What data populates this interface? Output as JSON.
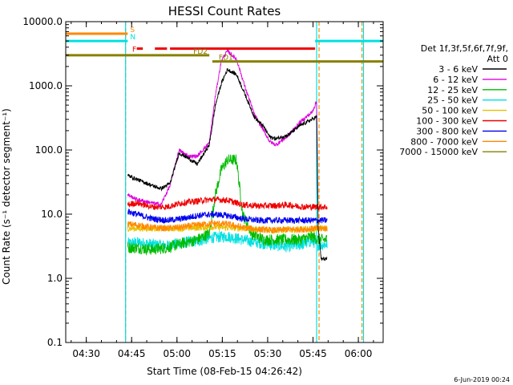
{
  "chart_data": {
    "type": "line",
    "title": "HESSI Count Rates",
    "xlabel": "Start Time (08-Feb-15 04:26:42)",
    "ylabel": "Count Rate (s⁻¹ detector segment⁻¹)",
    "x_ticks": [
      "04:30",
      "04:45",
      "05:00",
      "05:15",
      "05:30",
      "05:45",
      "06:00"
    ],
    "x_tick_minutes": [
      3.3,
      18.3,
      33.3,
      48.3,
      63.3,
      78.3,
      93.3
    ],
    "xlim_minutes": [
      -3.5,
      101.5
    ],
    "y_scale": "log",
    "ylim": [
      0.1,
      10000
    ],
    "y_ticks": [
      "0.1",
      "1.0",
      "10.0",
      "100.0",
      "1000.0",
      "10000.0"
    ],
    "y_tick_values": [
      0.1,
      1,
      10,
      100,
      1000,
      10000
    ],
    "legend_title": "Det 1f,3f,5f,6f,7f,9f,",
    "legend_subtitle": "Att 0",
    "legend_placement": "right",
    "series": [
      {
        "name": "3 - 6 keV",
        "color": "#000000",
        "t": [
          17,
          20,
          25,
          28,
          31,
          34,
          37,
          40,
          44,
          46,
          48,
          50,
          53,
          56,
          59,
          62,
          64,
          66,
          70,
          74,
          78,
          79.5,
          80,
          81,
          83
        ],
        "v": [
          40,
          35,
          28,
          25,
          30,
          90,
          75,
          60,
          120,
          500,
          1100,
          1800,
          1500,
          700,
          320,
          230,
          160,
          150,
          170,
          240,
          300,
          330,
          6,
          2,
          2
        ]
      },
      {
        "name": "6 - 12 keV",
        "color": "#dd00dd",
        "t": [
          17,
          20,
          25,
          28,
          31,
          34,
          37,
          40,
          44,
          46,
          48,
          50,
          53,
          56,
          59,
          62,
          64,
          66,
          70,
          74,
          78,
          79.5,
          80
        ],
        "v": [
          20,
          17,
          15,
          14,
          28,
          100,
          80,
          80,
          130,
          700,
          2500,
          3500,
          2600,
          900,
          350,
          200,
          135,
          120,
          165,
          270,
          390,
          570,
          8
        ]
      },
      {
        "name": "12 - 25 keV",
        "color": "#00bb00",
        "t": [
          17,
          20,
          25,
          30,
          35,
          40,
          44,
          46,
          48,
          50,
          53,
          55,
          58,
          62,
          66,
          70,
          74,
          78,
          80,
          83
        ],
        "v": [
          3,
          3,
          2.8,
          3,
          3.5,
          4,
          5,
          20,
          50,
          70,
          70,
          10,
          5,
          4,
          4,
          4,
          4,
          4.5,
          4,
          4
        ]
      },
      {
        "name": "25 - 50 keV",
        "color": "#00e0e0",
        "t": [
          17,
          20,
          25,
          30,
          35,
          40,
          45,
          50,
          55,
          60,
          65,
          70,
          75,
          78,
          80,
          83
        ],
        "v": [
          3.5,
          3.6,
          3.4,
          3.2,
          3.6,
          3.8,
          4.3,
          4.5,
          4,
          3.6,
          3.3,
          3.1,
          3.4,
          3.8,
          3.3,
          3.4
        ]
      },
      {
        "name": "50 - 100 keV",
        "color": "#e8c000",
        "t": [
          17,
          25,
          35,
          45,
          55,
          65,
          75,
          83
        ],
        "v": [
          6,
          6,
          6,
          6.3,
          6,
          5.6,
          5.8,
          6
        ]
      },
      {
        "name": "100 - 300 keV",
        "color": "#ee0000",
        "t": [
          17,
          20,
          25,
          30,
          35,
          40,
          45,
          50,
          55,
          60,
          65,
          70,
          75,
          80,
          83
        ],
        "v": [
          14,
          15,
          13,
          13,
          15,
          16,
          17,
          16.5,
          14,
          13.5,
          13.5,
          14,
          13,
          13,
          13
        ]
      },
      {
        "name": "300 - 800 keV",
        "color": "#0000ee",
        "t": [
          17,
          20,
          25,
          30,
          35,
          40,
          45,
          50,
          55,
          60,
          65,
          70,
          75,
          80,
          83
        ],
        "v": [
          11,
          10,
          8.5,
          8,
          8.5,
          9.5,
          10,
          9.5,
          8.5,
          8,
          8,
          8,
          8,
          8,
          8
        ]
      },
      {
        "name": "800 - 7000 keV",
        "color": "#ff8800",
        "t": [
          17,
          20,
          25,
          30,
          35,
          40,
          45,
          50,
          55,
          60,
          65,
          70,
          75,
          80,
          83
        ],
        "v": [
          7,
          6.8,
          6.2,
          6,
          6.3,
          6.8,
          7.2,
          7,
          6.2,
          5.8,
          5.6,
          5.8,
          5.8,
          6,
          6
        ]
      },
      {
        "name": "7000 - 15000 keV",
        "color": "#888000",
        "t": [],
        "v": []
      }
    ],
    "flags": [
      {
        "label": "S",
        "color": "#ff8800",
        "y_value": 6500,
        "segments": [
          [
            -3.5,
            17
          ]
        ]
      },
      {
        "label": "N",
        "color": "#00e0e0",
        "y_value": 5000,
        "segments": [
          [
            -3.5,
            17
          ],
          [
            79,
            101.5
          ]
        ]
      },
      {
        "label": "F",
        "color": "#ee0000",
        "y_value": 3800,
        "segments": [
          [
            20,
            22
          ],
          [
            26,
            30
          ],
          [
            31,
            79
          ]
        ]
      },
      {
        "label": "FD2",
        "color": "#888000",
        "y_value": 3000,
        "segments": [
          [
            -3.5,
            44
          ]
        ]
      },
      {
        "label": "FD1",
        "color": "#888000",
        "y_value": 2400,
        "segments": [
          [
            45,
            101.5
          ]
        ]
      }
    ],
    "vertical_lines": [
      {
        "t": 16.3,
        "color": "#ff8800",
        "style": "dashed"
      },
      {
        "t": 16.3,
        "color": "#00e0e0",
        "style": "solid"
      },
      {
        "t": 79.5,
        "color": "#00e0e0",
        "style": "solid"
      },
      {
        "t": 80.3,
        "color": "#ff8800",
        "style": "dashed"
      },
      {
        "t": 94.5,
        "color": "#ff8800",
        "style": "dashed"
      },
      {
        "t": 95.0,
        "color": "#00e0e0",
        "style": "solid"
      }
    ],
    "footer_date": "6-Jun-2019 00:24"
  }
}
